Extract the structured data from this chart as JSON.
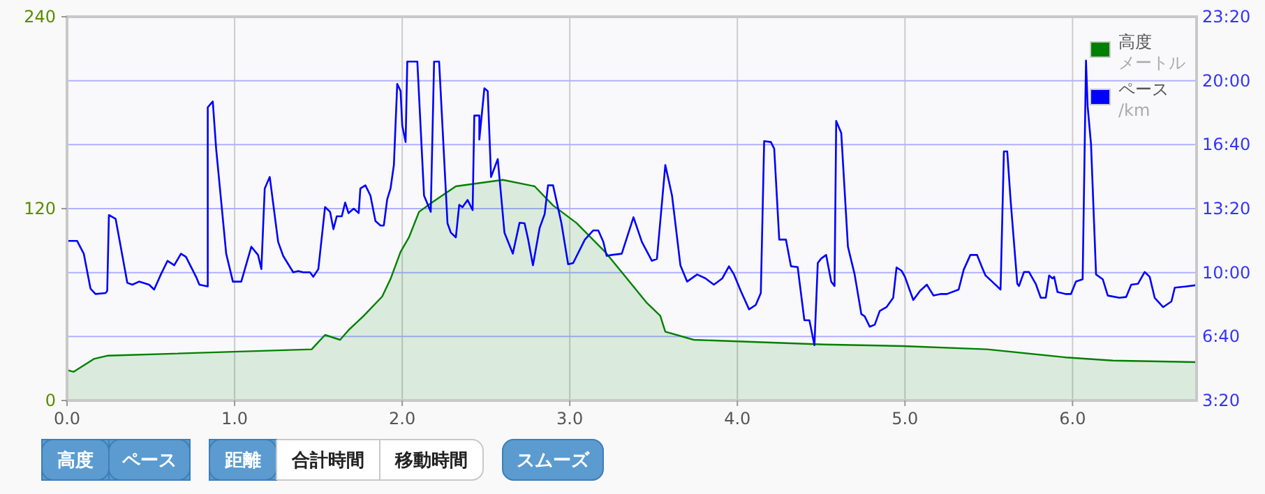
{
  "chart_data": {
    "type": "line",
    "xlim": [
      0,
      6.74
    ],
    "xticks": [
      {
        "value": 0,
        "label": "0.0"
      },
      {
        "value": 1,
        "label": "1.0"
      },
      {
        "value": 2,
        "label": "2.0"
      },
      {
        "value": 3,
        "label": "3.0"
      },
      {
        "value": 4,
        "label": "4.0"
      },
      {
        "value": 5,
        "label": "5.0"
      },
      {
        "value": 6,
        "label": "6.0"
      }
    ],
    "ylim": [
      0,
      240
    ],
    "yticks": [
      0,
      120,
      240
    ],
    "y2lim": [
      200,
      1400
    ],
    "y2ticks": [
      {
        "value": 200,
        "label": "3:20"
      },
      {
        "value": 400,
        "label": "6:40"
      },
      {
        "value": 600,
        "label": "10:00"
      },
      {
        "value": 800,
        "label": "13:20"
      },
      {
        "value": 1000,
        "label": "16:40"
      },
      {
        "value": 1200,
        "label": "20:00"
      },
      {
        "value": 1400,
        "label": "23:20"
      }
    ],
    "grid": true,
    "legend": "top right",
    "annotations": [
      "高度",
      "ペース",
      "距離",
      "合計時間",
      "移動時間",
      "スムーズ",
      "メートル",
      "/km"
    ],
    "series": [
      {
        "name": "高度",
        "type": "area",
        "color": "#008000",
        "x": [
          0,
          0.04,
          0.16,
          0.24,
          1.46,
          1.54,
          1.63,
          1.68,
          1.77,
          1.88,
          1.93,
          1.99,
          2.04,
          2.1,
          2.18,
          2.32,
          2.6,
          2.79,
          2.9,
          3.04,
          3.21,
          3.32,
          3.46,
          3.54,
          3.57,
          3.74,
          4.52,
          4.99,
          5.49,
          5.96,
          6.24,
          6.74
        ],
        "values": [
          19,
          18,
          26,
          28,
          32,
          41,
          38,
          44,
          53,
          65,
          76,
          93,
          102,
          118,
          124,
          134,
          138,
          134,
          122,
          111,
          93,
          79,
          61,
          53,
          43,
          38,
          35,
          34,
          32,
          27,
          25,
          24
        ]
      },
      {
        "name": "ペース",
        "axis": "y2",
        "color": "#0000ff",
        "x": [
          0,
          0.06,
          0.1,
          0.14,
          0.17,
          0.23,
          0.24,
          0.25,
          0.29,
          0.36,
          0.39,
          0.43,
          0.49,
          0.52,
          0.56,
          0.6,
          0.64,
          0.68,
          0.71,
          0.77,
          0.79,
          0.84,
          0.84,
          0.87,
          0.89,
          0.95,
          0.99,
          1.04,
          1.1,
          1.14,
          1.16,
          1.18,
          1.21,
          1.26,
          1.29,
          1.35,
          1.38,
          1.41,
          1.45,
          1.47,
          1.5,
          1.54,
          1.57,
          1.59,
          1.61,
          1.64,
          1.66,
          1.68,
          1.71,
          1.74,
          1.75,
          1.78,
          1.81,
          1.84,
          1.87,
          1.89,
          1.91,
          1.93,
          1.95,
          1.97,
          1.99,
          2.0,
          2.02,
          2.03,
          2.09,
          2.13,
          2.17,
          2.19,
          2.22,
          2.27,
          2.29,
          2.32,
          2.34,
          2.36,
          2.39,
          2.42,
          2.43,
          2.46,
          2.46,
          2.49,
          2.51,
          2.53,
          2.57,
          2.61,
          2.66,
          2.7,
          2.73,
          2.75,
          2.78,
          2.82,
          2.85,
          2.87,
          2.9,
          2.95,
          2.99,
          3.02,
          3.09,
          3.14,
          3.17,
          3.2,
          3.22,
          3.25,
          3.31,
          3.38,
          3.43,
          3.49,
          3.52,
          3.57,
          3.61,
          3.66,
          3.7,
          3.76,
          3.81,
          3.86,
          3.91,
          3.95,
          3.98,
          4.02,
          4.07,
          4.11,
          4.14,
          4.16,
          4.2,
          4.22,
          4.25,
          4.29,
          4.32,
          4.36,
          4.4,
          4.43,
          4.46,
          4.48,
          4.5,
          4.53,
          4.56,
          4.58,
          4.59,
          4.62,
          4.66,
          4.7,
          4.74,
          4.76,
          4.79,
          4.82,
          4.85,
          4.89,
          4.93,
          4.95,
          4.98,
          5.0,
          5.03,
          5.05,
          5.09,
          5.13,
          5.17,
          5.21,
          5.25,
          5.32,
          5.35,
          5.39,
          5.43,
          5.46,
          5.48,
          5.52,
          5.57,
          5.59,
          5.61,
          5.63,
          5.67,
          5.68,
          5.71,
          5.74,
          5.78,
          5.81,
          5.84,
          5.86,
          5.88,
          5.89,
          5.91,
          5.96,
          5.99,
          6.02,
          6.06,
          6.08,
          6.09,
          6.11,
          6.14,
          6.18,
          6.21,
          6.28,
          6.32,
          6.35,
          6.39,
          6.43,
          6.46,
          6.49,
          6.54,
          6.59,
          6.61,
          6.67,
          6.74
        ],
        "values": [
          699,
          699,
          659,
          550,
          533,
          536,
          543,
          780,
          768,
          568,
          562,
          572,
          562,
          547,
          594,
          637,
          623,
          659,
          649,
          587,
          562,
          557,
          1117,
          1135,
          987,
          659,
          572,
          572,
          681,
          655,
          611,
          863,
          899,
          696,
          652,
          601,
          605,
          601,
          601,
          587,
          611,
          805,
          790,
          736,
          776,
          776,
          819,
          786,
          800,
          786,
          863,
          873,
          841,
          761,
          747,
          747,
          829,
          863,
          936,
          1190,
          1168,
          1059,
          1008,
          1260,
          1260,
          841,
          790,
          1260,
          1260,
          754,
          725,
          710,
          812,
          805,
          827,
          795,
          1091,
          1091,
          1016,
          1176,
          1168,
          899,
          955,
          725,
          659,
          756,
          754,
          707,
          623,
          740,
          783,
          873,
          873,
          754,
          626,
          630,
          703,
          732,
          732,
          696,
          652,
          655,
          659,
          773,
          696,
          637,
          643,
          936,
          841,
          623,
          572,
          594,
          582,
          562,
          582,
          620,
          594,
          543,
          485,
          499,
          536,
          1011,
          1008,
          987,
          703,
          703,
          620,
          617,
          451,
          451,
          373,
          630,
          644,
          655,
          572,
          558,
          1074,
          1037,
          681,
          594,
          470,
          463,
          431,
          437,
          480,
          492,
          521,
          616,
          606,
          587,
          543,
          514,
          543,
          562,
          528,
          533,
          533,
          547,
          609,
          655,
          655,
          616,
          591,
          572,
          547,
          979,
          979,
          826,
          565,
          558,
          602,
          602,
          565,
          521,
          521,
          591,
          582,
          587,
          539,
          533,
          533,
          572,
          579,
          1263,
          1119,
          1001,
          594,
          579,
          528,
          521,
          524,
          562,
          565,
          602,
          587,
          521,
          492,
          510,
          553,
          556,
          561
        ]
      }
    ]
  }
}
